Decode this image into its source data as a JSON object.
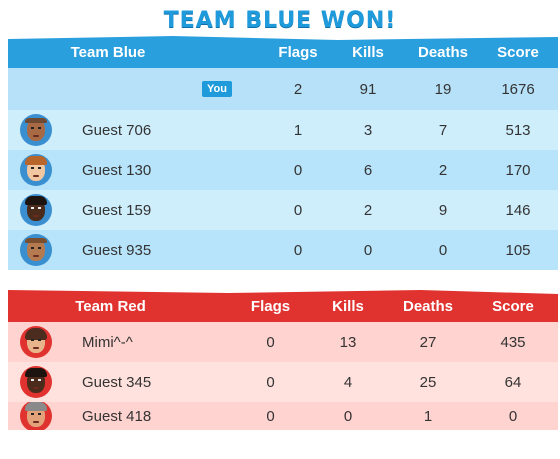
{
  "banner": "TEAM BLUE WON!",
  "columns": {
    "flags": "Flags",
    "kills": "Kills",
    "deaths": "Deaths",
    "score": "Score"
  },
  "blue": {
    "name": "Team Blue",
    "you_badge": "You",
    "you_row": {
      "flags": "2",
      "kills": "91",
      "deaths": "19",
      "score": "1676"
    },
    "players": [
      {
        "name": "Guest 706",
        "flags": "1",
        "kills": "3",
        "deaths": "7",
        "score": "513"
      },
      {
        "name": "Guest 130",
        "flags": "0",
        "kills": "6",
        "deaths": "2",
        "score": "170"
      },
      {
        "name": "Guest 159",
        "flags": "0",
        "kills": "2",
        "deaths": "9",
        "score": "146"
      },
      {
        "name": "Guest 935",
        "flags": "0",
        "kills": "0",
        "deaths": "0",
        "score": "105"
      }
    ]
  },
  "red": {
    "name": "Team Red",
    "players": [
      {
        "name": "Mimi^-^",
        "flags": "0",
        "kills": "13",
        "deaths": "27",
        "score": "435"
      },
      {
        "name": "Guest 345",
        "flags": "0",
        "kills": "4",
        "deaths": "25",
        "score": "64"
      },
      {
        "name": "Guest 418",
        "flags": "0",
        "kills": "0",
        "deaths": "1",
        "score": "0"
      }
    ]
  },
  "colors": {
    "blue_accent": "#2a9fde",
    "red_accent": "#e0322f"
  }
}
